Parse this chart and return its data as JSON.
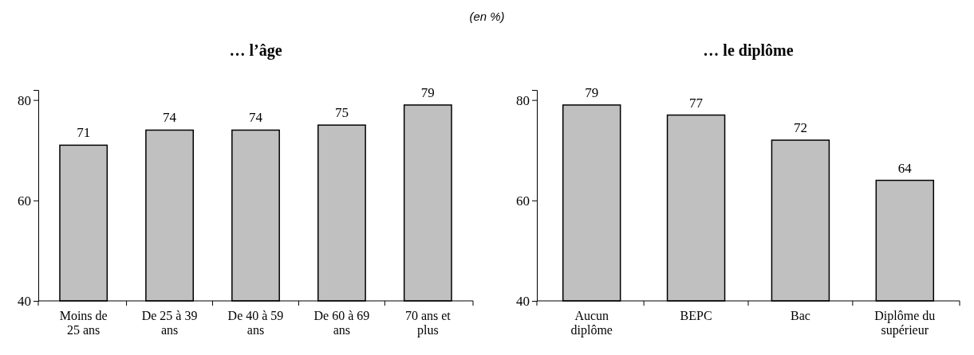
{
  "chart_data": [
    {
      "type": "bar",
      "title": "… l’âge",
      "subtitle": "(en %)",
      "categories": [
        "Moins de 25 ans",
        "De 25 à 39 ans",
        "De 40 à 59 ans",
        "De 60 à 69 ans",
        "70 ans et plus"
      ],
      "values": [
        71,
        74,
        74,
        75,
        79
      ],
      "color": "#c0c0c0",
      "ylim": [
        40,
        82
      ],
      "yticks": [
        40,
        60,
        80
      ],
      "data_labels": true
    },
    {
      "type": "bar",
      "title": "… le diplôme",
      "categories": [
        "Aucun diplôme",
        "BEPC",
        "Bac",
        "Diplôme du supérieur"
      ],
      "values": [
        79,
        77,
        72,
        64
      ],
      "color": "#c0c0c0",
      "ylim": [
        40,
        82
      ],
      "yticks": [
        40,
        60,
        80
      ],
      "data_labels": true
    }
  ]
}
